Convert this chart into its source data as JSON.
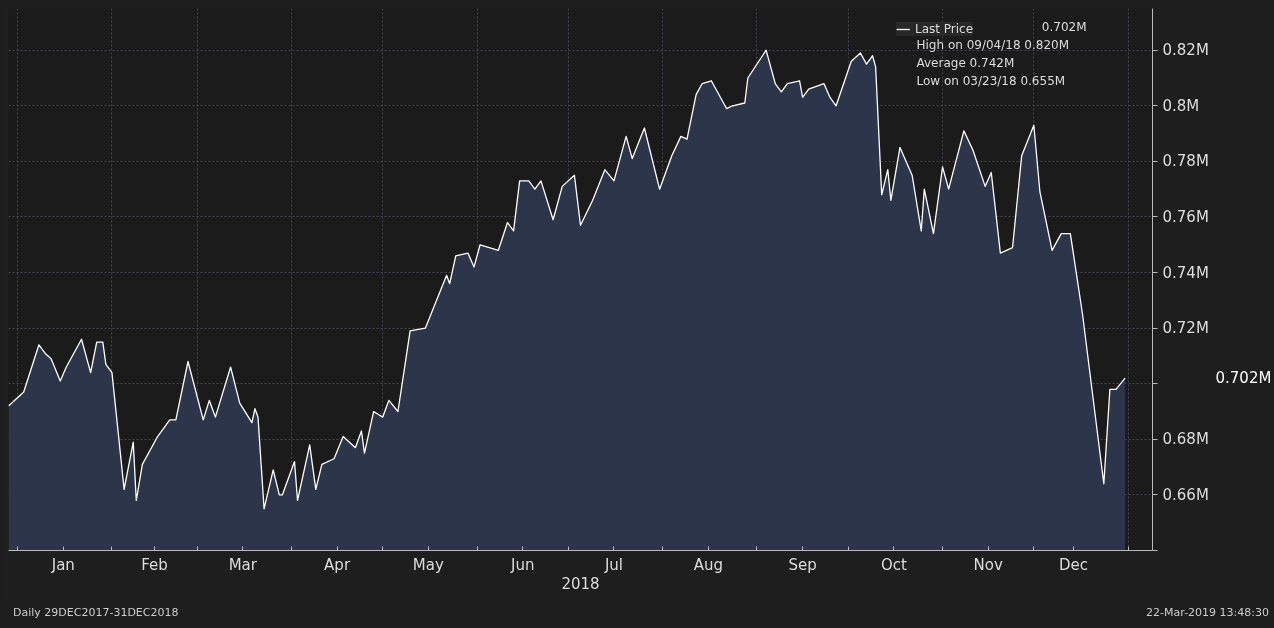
{
  "chart_data": {
    "type": "area",
    "xlabel": "2018",
    "x": [
      "2017-12-29",
      "2018-01-03",
      "2018-01-08",
      "2018-01-10",
      "2018-01-12",
      "2018-01-15",
      "2018-01-17",
      "2018-01-22",
      "2018-01-25",
      "2018-01-27",
      "2018-01-29",
      "2018-01-30",
      "2018-02-01",
      "2018-02-05",
      "2018-02-08",
      "2018-02-09",
      "2018-02-11",
      "2018-02-16",
      "2018-02-20",
      "2018-02-22",
      "2018-02-26",
      "2018-03-03",
      "2018-03-05",
      "2018-03-07",
      "2018-03-12",
      "2018-03-15",
      "2018-03-19",
      "2018-03-20",
      "2018-03-21",
      "2018-03-23",
      "2018-03-26",
      "2018-03-28",
      "2018-03-29",
      "2018-04-02",
      "2018-04-03",
      "2018-04-07",
      "2018-04-09",
      "2018-04-11",
      "2018-04-15",
      "2018-04-18",
      "2018-04-22",
      "2018-04-24",
      "2018-04-25",
      "2018-04-28",
      "2018-05-01",
      "2018-05-03",
      "2018-05-06",
      "2018-05-10",
      "2018-05-15",
      "2018-05-22",
      "2018-05-23",
      "2018-05-25",
      "2018-05-29",
      "2018-05-31",
      "2018-06-02",
      "2018-06-08",
      "2018-06-11",
      "2018-06-13",
      "2018-06-15",
      "2018-06-18",
      "2018-06-20",
      "2018-06-22",
      "2018-06-26",
      "2018-06-29",
      "2018-07-03",
      "2018-07-05",
      "2018-07-09",
      "2018-07-13",
      "2018-07-16",
      "2018-07-20",
      "2018-07-22",
      "2018-07-26",
      "2018-07-31",
      "2018-08-04",
      "2018-08-07",
      "2018-08-09",
      "2018-08-12",
      "2018-08-14",
      "2018-08-17",
      "2018-08-22",
      "2018-08-24",
      "2018-08-28",
      "2018-08-29",
      "2018-09-04",
      "2018-09-07",
      "2018-09-09",
      "2018-09-11",
      "2018-09-15",
      "2018-09-16",
      "2018-09-18",
      "2018-09-23",
      "2018-09-25",
      "2018-09-27",
      "2018-10-02",
      "2018-10-05",
      "2018-10-07",
      "2018-10-09",
      "2018-10-10",
      "2018-10-12",
      "2018-10-14",
      "2018-10-15",
      "2018-10-18",
      "2018-10-22",
      "2018-10-25",
      "2018-10-26",
      "2018-10-29",
      "2018-11-01",
      "2018-11-03",
      "2018-11-08",
      "2018-11-11",
      "2018-11-15",
      "2018-11-17",
      "2018-11-20",
      "2018-11-24",
      "2018-11-27",
      "2018-12-01",
      "2018-12-03",
      "2018-12-07",
      "2018-12-10",
      "2018-12-13",
      "2018-12-17",
      "2018-12-24",
      "2018-12-26",
      "2018-12-28",
      "2018-12-31"
    ],
    "series": [
      {
        "name": "Last Price",
        "color": "#ffffff",
        "values": [
          0.692,
          0.697,
          0.714,
          0.711,
          0.709,
          0.701,
          0.706,
          0.716,
          0.704,
          0.715,
          0.715,
          0.707,
          0.704,
          0.662,
          0.679,
          0.658,
          0.671,
          0.681,
          0.687,
          0.687,
          0.708,
          0.687,
          0.694,
          0.688,
          0.706,
          0.693,
          0.686,
          0.691,
          0.688,
          0.655,
          0.669,
          0.66,
          0.66,
          0.672,
          0.658,
          0.678,
          0.662,
          0.671,
          0.673,
          0.681,
          0.677,
          0.683,
          0.675,
          0.69,
          0.688,
          0.694,
          0.69,
          0.719,
          0.72,
          0.739,
          0.736,
          0.746,
          0.747,
          0.742,
          0.75,
          0.748,
          0.758,
          0.755,
          0.773,
          0.773,
          0.77,
          0.773,
          0.759,
          0.771,
          0.775,
          0.757,
          0.766,
          0.777,
          0.773,
          0.789,
          0.781,
          0.792,
          0.77,
          0.782,
          0.789,
          0.788,
          0.804,
          0.808,
          0.809,
          0.799,
          0.8,
          0.801,
          0.81,
          0.82,
          0.808,
          0.805,
          0.808,
          0.809,
          0.803,
          0.806,
          0.808,
          0.803,
          0.8,
          0.816,
          0.819,
          0.815,
          0.818,
          0.814,
          0.768,
          0.777,
          0.766,
          0.785,
          0.775,
          0.755,
          0.77,
          0.754,
          0.778,
          0.77,
          0.791,
          0.784,
          0.771,
          0.776,
          0.747,
          0.749,
          0.782,
          0.793,
          0.769,
          0.748,
          0.754,
          0.754,
          0.725,
          0.664,
          0.698,
          0.698,
          0.702
        ]
      }
    ],
    "xlim": [
      "2017-12-29",
      "2019-01-09"
    ],
    "xticks": [
      {
        "value": "2018-01-01",
        "label": null
      },
      {
        "value": "2018-01-16",
        "label": "Jan"
      },
      {
        "value": "2018-02-01",
        "label": null
      },
      {
        "value": "2018-02-15",
        "label": "Feb"
      },
      {
        "value": "2018-03-01",
        "label": null
      },
      {
        "value": "2018-03-16",
        "label": "Mar"
      },
      {
        "value": "2018-04-01",
        "label": null
      },
      {
        "value": "2018-04-16",
        "label": "Apr"
      },
      {
        "value": "2018-05-01",
        "label": null
      },
      {
        "value": "2018-05-16",
        "label": "May"
      },
      {
        "value": "2018-06-01",
        "label": null
      },
      {
        "value": "2018-06-16",
        "label": "Jun"
      },
      {
        "value": "2018-07-01",
        "label": null
      },
      {
        "value": "2018-07-16",
        "label": "Jul"
      },
      {
        "value": "2018-08-01",
        "label": null
      },
      {
        "value": "2018-08-16",
        "label": "Aug"
      },
      {
        "value": "2018-09-01",
        "label": null
      },
      {
        "value": "2018-09-16",
        "label": "Sep"
      },
      {
        "value": "2018-10-01",
        "label": null
      },
      {
        "value": "2018-10-16",
        "label": "Oct"
      },
      {
        "value": "2018-11-01",
        "label": null
      },
      {
        "value": "2018-11-16",
        "label": "Nov"
      },
      {
        "value": "2018-12-01",
        "label": null
      },
      {
        "value": "2018-12-14",
        "label": "Dec"
      },
      {
        "value": "2019-01-01",
        "label": null
      }
    ],
    "ylim": [
      0.64,
      0.835
    ],
    "yticks": [
      {
        "value": 0.64,
        "label": null
      },
      {
        "value": 0.66,
        "label": "0.66M"
      },
      {
        "value": 0.68,
        "label": "0.68M"
      },
      {
        "value": 0.7,
        "label": null
      },
      {
        "value": 0.72,
        "label": "0.72M"
      },
      {
        "value": 0.74,
        "label": "0.74M"
      },
      {
        "value": 0.76,
        "label": "0.76M"
      },
      {
        "value": 0.78,
        "label": "0.78M"
      },
      {
        "value": 0.8,
        "label": "0.8M"
      },
      {
        "value": 0.82,
        "label": "0.82M"
      }
    ],
    "grid": true,
    "legend": "top right",
    "annotations": [
      "0.702M",
      "High on 09/04/18 0.820M",
      "Average 0.742M",
      "Low on 03/23/18 0.655M",
      "Daily 29DEC2017-31DEC2018",
      "22-Mar-2019 13:48:30",
      "0.702M"
    ]
  }
}
